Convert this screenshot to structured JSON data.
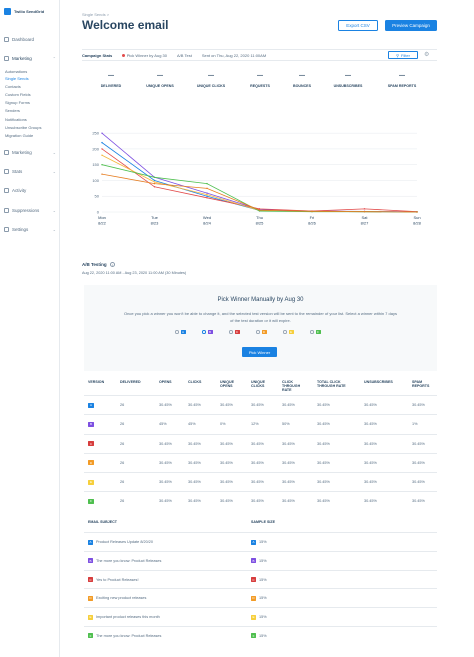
{
  "brand": {
    "name": "Twilio SendGrid"
  },
  "nav": {
    "dashboard": "Dashboard",
    "marketing": "Marketing",
    "marketing_subitems": [
      "Automations",
      "Single Sends",
      "Contacts",
      "Custom Fields",
      "Signup Forms",
      "Senders",
      "Notifications",
      "Unsubscribe Groups",
      "Migration Guide"
    ],
    "marketing2": "Marketing",
    "stats": "Stats",
    "activity": "Activity",
    "suppressions": "Suppressions",
    "settings": "Settings"
  },
  "header": {
    "breadcrumb": "Single Sends",
    "title": "Welcome email",
    "export_csv": "Export CSV",
    "preview_campaign": "Preview Campaign"
  },
  "stats_bar": {
    "label": "Campaign Stats",
    "pick_winner": "Pick Winner by Aug 30",
    "ab_test": "A/B Test",
    "sent_on": "Sent on Thu, Aug 22, 2020 11:00AM",
    "filter": "Filter"
  },
  "metrics": [
    {
      "value": "—",
      "label": "DELIVERED"
    },
    {
      "value": "—",
      "label": "UNIQUE OPENS"
    },
    {
      "value": "—",
      "label": "UNIQUE CLICKS"
    },
    {
      "value": "—",
      "label": "REQUESTS"
    },
    {
      "value": "—",
      "label": "BOUNCES"
    },
    {
      "value": "—",
      "label": "UNSUBSCRIBES"
    },
    {
      "value": "—",
      "label": "SPAM REPORTS"
    }
  ],
  "chart_data": {
    "type": "line",
    "x": [
      "Mon 8/22",
      "Tue 8/23",
      "Wed 8/24",
      "Thu 8/25",
      "Fri 8/26",
      "Sat 8/27",
      "Sun 8/28"
    ],
    "yticks": [
      0,
      50,
      100,
      150,
      200,
      250
    ],
    "ylim": [
      0,
      260
    ],
    "grid": true,
    "series": [
      {
        "color": "#7d4fe1",
        "values": [
          250,
          110,
          60,
          8,
          3,
          2,
          1
        ]
      },
      {
        "color": "#1a82e2",
        "values": [
          220,
          100,
          50,
          5,
          2,
          1,
          0
        ]
      },
      {
        "color": "#e24b4b",
        "values": [
          200,
          80,
          45,
          10,
          3,
          10,
          1
        ]
      },
      {
        "color": "#f6b73c",
        "values": [
          180,
          95,
          55,
          5,
          2,
          1,
          0
        ]
      },
      {
        "color": "#4fbf4f",
        "values": [
          150,
          110,
          90,
          3,
          1,
          1,
          0
        ]
      },
      {
        "color": "#e67e22",
        "values": [
          120,
          90,
          75,
          6,
          2,
          1,
          0
        ]
      }
    ]
  },
  "ab": {
    "title": "A/B Testing",
    "dates": "Aug 22, 2020 11:00 AM - Aug 23, 2020 11:00 AM (30 Minutes)",
    "panel_title": "Pick Winner Manually by Aug 30",
    "panel_desc": "Once you pick a winner you won't be able to change it, and the selected test version will be sent to the remainder of your list. Select a winner within 7 days of the test duration or it will expire.",
    "pick_button": "Pick Winner"
  },
  "versions": [
    {
      "letter": "A",
      "color": "#1a82e2"
    },
    {
      "letter": "B",
      "color": "#7d4fe1"
    },
    {
      "letter": "C",
      "color": "#d73d3d"
    },
    {
      "letter": "D",
      "color": "#f29b26"
    },
    {
      "letter": "E",
      "color": "#f6cf3c"
    },
    {
      "letter": "F",
      "color": "#4fbf4f"
    }
  ],
  "version_table": {
    "headers": [
      "VERSION",
      "DELIVERED",
      "OPENS",
      "CLICKS",
      "UNIQUE OPENS",
      "UNIQUE CLICKS",
      "CLICK THROUGH RATE",
      "TOTAL CLICK THROUGH RATE",
      "UNSUBSCRIBES",
      "SPAM REPORTS"
    ],
    "rows": [
      [
        "26",
        "30.45%",
        "30.45%",
        "30.45%",
        "30.45%",
        "30.45%",
        "30.45%",
        "30.45%",
        "30.45%"
      ],
      [
        "26",
        "45%",
        "45%",
        "0%",
        "12%",
        "50%",
        "30.45%",
        "30.45%",
        "1%"
      ],
      [
        "26",
        "30.45%",
        "30.45%",
        "30.45%",
        "30.45%",
        "30.45%",
        "30.45%",
        "30.45%",
        "30.45%"
      ],
      [
        "26",
        "30.45%",
        "30.45%",
        "30.45%",
        "30.45%",
        "30.45%",
        "30.45%",
        "30.45%",
        "30.45%"
      ],
      [
        "26",
        "30.45%",
        "30.45%",
        "30.45%",
        "30.45%",
        "30.45%",
        "30.45%",
        "30.45%",
        "30.45%"
      ],
      [
        "26",
        "30.45%",
        "30.45%",
        "30.45%",
        "30.45%",
        "30.45%",
        "30.45%",
        "30.45%",
        "30.45%"
      ]
    ]
  },
  "subject_table": {
    "headers": [
      "EMAIL SUBJECT",
      "SAMPLE SIZE"
    ],
    "rows": [
      {
        "subject": "Product Releases Update 8/20/20",
        "size": "15%"
      },
      {
        "subject": "The more you know: Product Releases",
        "size": "15%"
      },
      {
        "subject": "Yes to Product Releases!",
        "size": "15%"
      },
      {
        "subject": "Exciting new product releases",
        "size": "15%"
      },
      {
        "subject": "Important product releases this month",
        "size": "15%"
      },
      {
        "subject": "The more you know: Product Releases",
        "size": "15%"
      }
    ]
  }
}
